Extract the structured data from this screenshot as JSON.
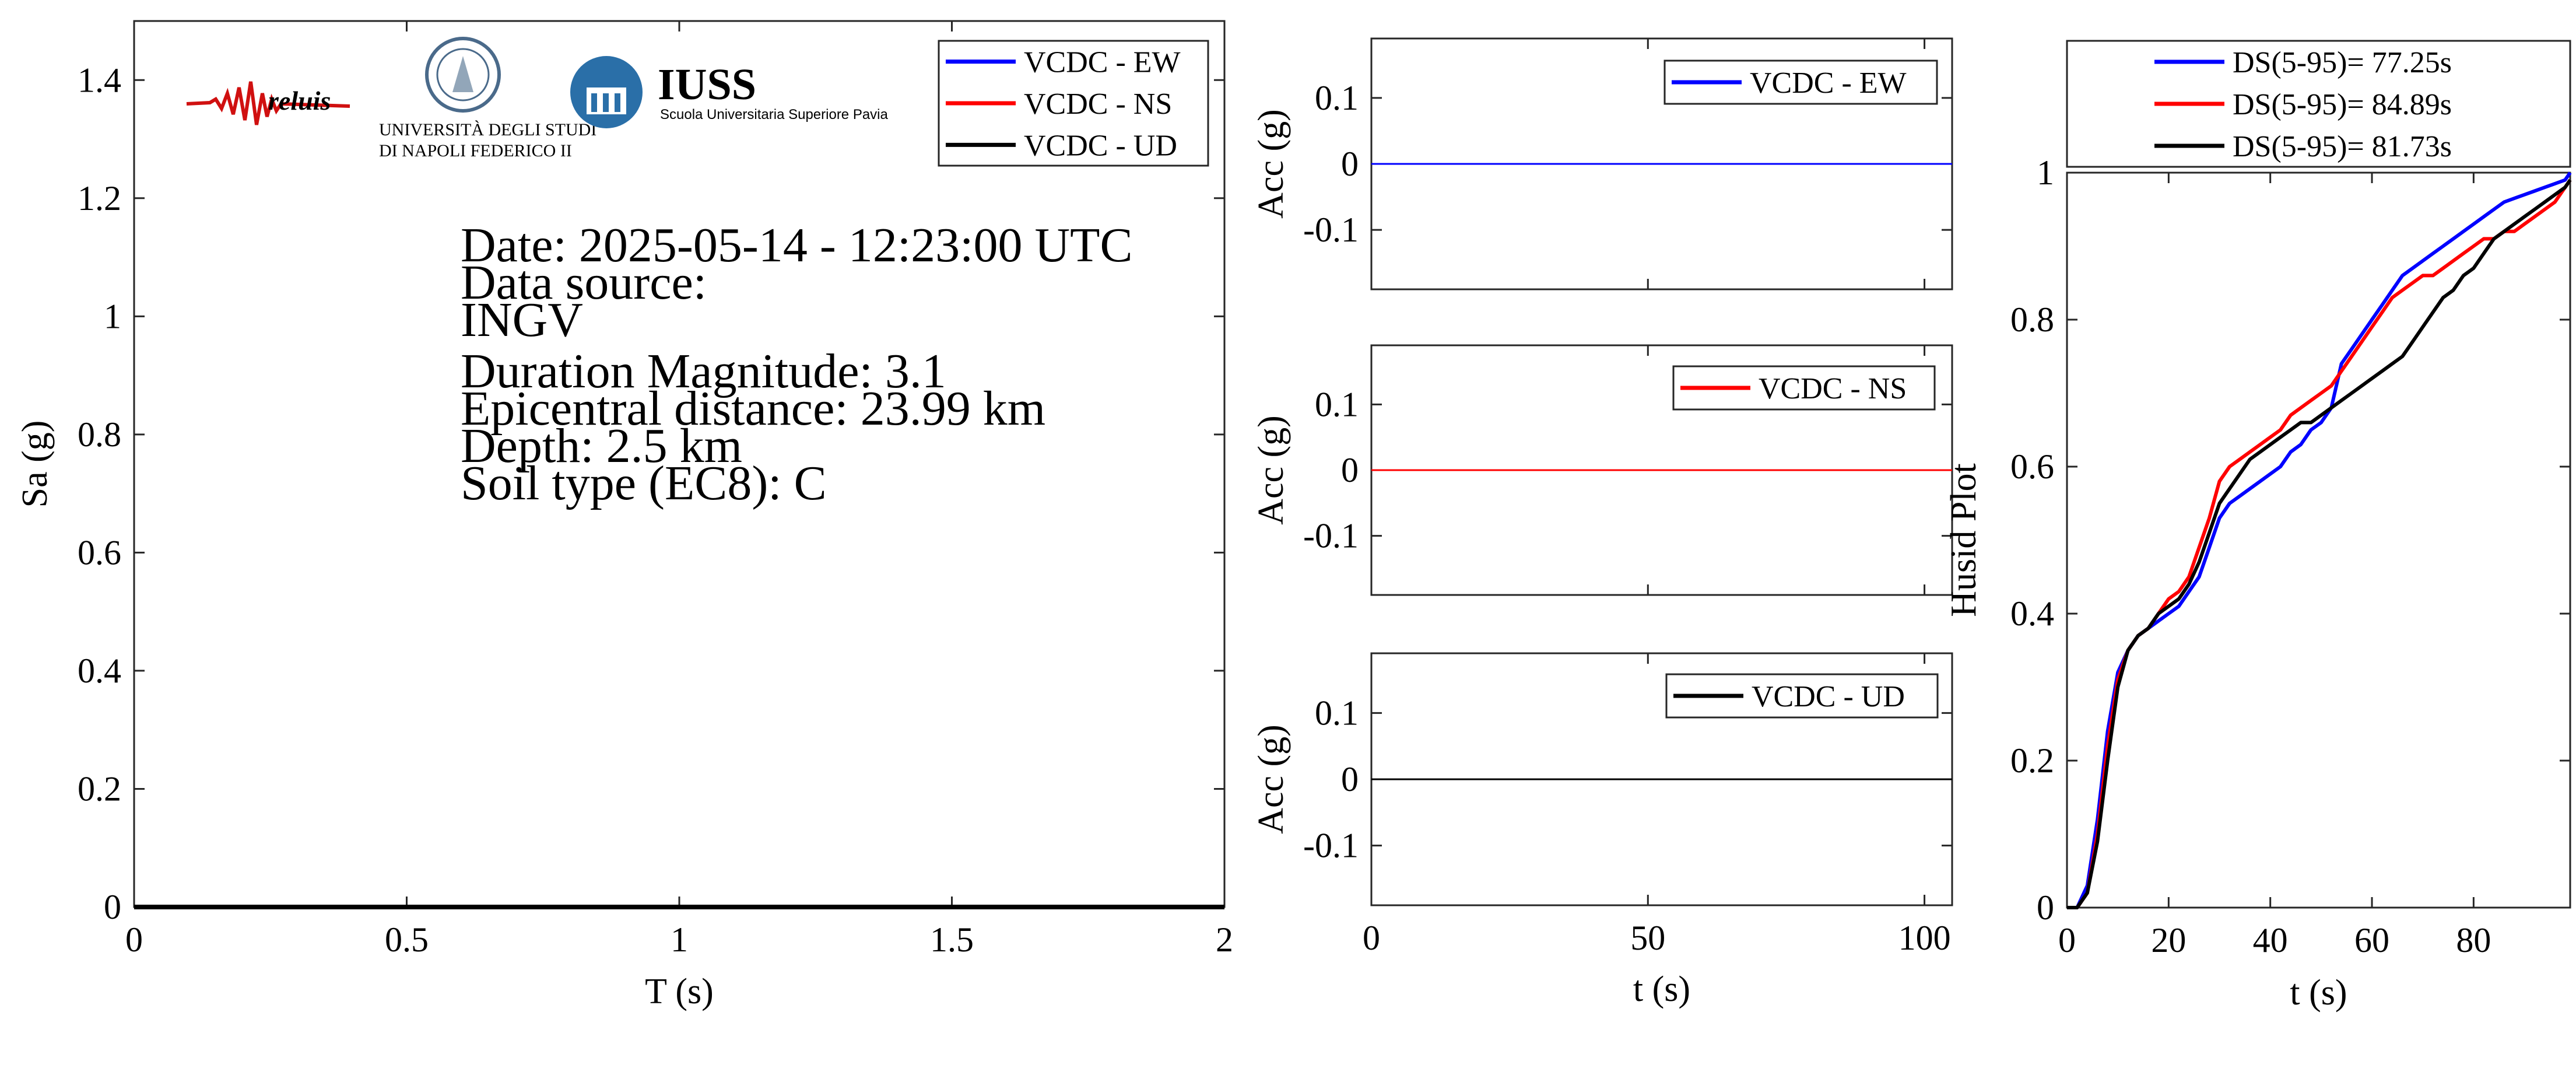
{
  "chart_data": [
    {
      "type": "line",
      "xlabel": "T (s)",
      "ylabel": "Sa (g)",
      "xlim": [
        0,
        2
      ],
      "ylim": [
        0,
        1.5
      ],
      "xticks": [
        "0",
        "0.5",
        "1",
        "1.5",
        "2"
      ],
      "yticks": [
        "0",
        "0.2",
        "0.4",
        "0.6",
        "0.8",
        "1",
        "1.2",
        "1.4"
      ],
      "legend_position": "top-right",
      "series": [
        {
          "name": "VCDC - EW",
          "color": "#0000ff",
          "x": [
            0,
            2
          ],
          "y": [
            0,
            0
          ]
        },
        {
          "name": "VCDC - NS",
          "color": "#ff0000",
          "x": [
            0,
            2
          ],
          "y": [
            0,
            0
          ]
        },
        {
          "name": "VCDC - UD",
          "color": "#000000",
          "x": [
            0,
            2
          ],
          "y": [
            0,
            0
          ]
        }
      ],
      "annotations": {
        "date": "Date: 2025-05-14 - 12:23:00 UTC",
        "source_label": "Data source:",
        "source": "INGV",
        "magnitude": "Duration Magnitude: 3.1",
        "distance": "Epicentral distance: 23.99 km",
        "depth": "Depth: 2.5 km",
        "soil": "Soil type (EC8): C"
      },
      "logos": {
        "reluis": "reluis",
        "unina_line1": "UNIVERSITÀ DEGLI STUDI",
        "unina_line2": "DI NAPOLI FEDERICO II",
        "iuss": "IUSS",
        "iuss_sub": "Scuola Universitaria Superiore Pavia"
      }
    },
    {
      "type": "line",
      "xlabel": "",
      "ylabel": "Acc (g)",
      "xlim": [
        0,
        105
      ],
      "ylim": [
        -0.19,
        0.19
      ],
      "yticks": [
        "0.1",
        "0",
        "-0.1"
      ],
      "legend_position": "top-right",
      "series": [
        {
          "name": "VCDC - EW",
          "color": "#0000ff",
          "x": [
            0,
            105
          ],
          "y": [
            0,
            0
          ]
        }
      ]
    },
    {
      "type": "line",
      "xlabel": "",
      "ylabel": "Acc (g)",
      "xlim": [
        0,
        105
      ],
      "ylim": [
        -0.19,
        0.19
      ],
      "yticks": [
        "0.1",
        "0",
        "-0.1"
      ],
      "legend_position": "top-right",
      "series": [
        {
          "name": "VCDC - NS",
          "color": "#ff0000",
          "x": [
            0,
            105
          ],
          "y": [
            0,
            0
          ]
        }
      ]
    },
    {
      "type": "line",
      "xlabel": "t (s)",
      "ylabel": "Acc (g)",
      "xlim": [
        0,
        105
      ],
      "ylim": [
        -0.19,
        0.19
      ],
      "xticks": [
        "0",
        "50",
        "100"
      ],
      "yticks": [
        "0.1",
        "0",
        "-0.1"
      ],
      "legend_position": "top-right",
      "series": [
        {
          "name": "VCDC - UD",
          "color": "#000000",
          "x": [
            0,
            105
          ],
          "y": [
            0,
            0
          ]
        }
      ]
    },
    {
      "type": "line",
      "xlabel": "t (s)",
      "ylabel": "Husid Plot",
      "xlim": [
        0,
        99
      ],
      "ylim": [
        0,
        1
      ],
      "xticks": [
        "0",
        "20",
        "40",
        "60",
        "80"
      ],
      "yticks": [
        "0",
        "0.2",
        "0.4",
        "0.6",
        "0.8",
        "1"
      ],
      "legend_position": "top (outside)",
      "series": [
        {
          "name": "DS(5-95)= 77.25s",
          "color": "#0000ff",
          "x": [
            0,
            2,
            4,
            6,
            8,
            10,
            12,
            14,
            16,
            18,
            20,
            22,
            24,
            26,
            28,
            30,
            32,
            34,
            36,
            38,
            40,
            42,
            44,
            46,
            48,
            50,
            52,
            54,
            56,
            58,
            60,
            62,
            64,
            66,
            68,
            70,
            72,
            74,
            76,
            78,
            80,
            82,
            84,
            86,
            88,
            90,
            92,
            94,
            96,
            98,
            99
          ],
          "y": [
            0,
            0,
            0.03,
            0.12,
            0.24,
            0.32,
            0.35,
            0.37,
            0.38,
            0.39,
            0.4,
            0.41,
            0.43,
            0.45,
            0.49,
            0.53,
            0.55,
            0.56,
            0.57,
            0.58,
            0.59,
            0.6,
            0.62,
            0.63,
            0.65,
            0.66,
            0.68,
            0.74,
            0.76,
            0.78,
            0.8,
            0.82,
            0.84,
            0.86,
            0.87,
            0.88,
            0.89,
            0.9,
            0.91,
            0.92,
            0.93,
            0.94,
            0.95,
            0.96,
            0.965,
            0.97,
            0.975,
            0.98,
            0.985,
            0.99,
            1.0
          ]
        },
        {
          "name": "DS(5-95)= 84.89s",
          "color": "#ff0000",
          "x": [
            0,
            2,
            4,
            6,
            8,
            10,
            12,
            14,
            16,
            18,
            20,
            22,
            24,
            26,
            28,
            30,
            32,
            34,
            36,
            38,
            40,
            42,
            44,
            46,
            48,
            50,
            52,
            54,
            56,
            58,
            60,
            62,
            64,
            66,
            68,
            70,
            72,
            74,
            76,
            78,
            80,
            82,
            84,
            86,
            88,
            90,
            92,
            94,
            96,
            98,
            99
          ],
          "y": [
            0,
            0,
            0.02,
            0.1,
            0.22,
            0.31,
            0.35,
            0.37,
            0.38,
            0.4,
            0.42,
            0.43,
            0.45,
            0.49,
            0.53,
            0.58,
            0.6,
            0.61,
            0.62,
            0.63,
            0.64,
            0.65,
            0.67,
            0.68,
            0.69,
            0.7,
            0.71,
            0.73,
            0.75,
            0.77,
            0.79,
            0.81,
            0.83,
            0.84,
            0.85,
            0.86,
            0.86,
            0.87,
            0.88,
            0.89,
            0.9,
            0.91,
            0.91,
            0.92,
            0.92,
            0.93,
            0.94,
            0.95,
            0.96,
            0.98,
            0.99
          ]
        },
        {
          "name": "DS(5-95)= 81.73s",
          "color": "#000000",
          "x": [
            0,
            2,
            4,
            6,
            8,
            10,
            12,
            14,
            16,
            18,
            20,
            22,
            24,
            26,
            28,
            30,
            32,
            34,
            36,
            38,
            40,
            42,
            44,
            46,
            48,
            50,
            52,
            54,
            56,
            58,
            60,
            62,
            64,
            66,
            68,
            70,
            72,
            74,
            76,
            78,
            80,
            82,
            84,
            86,
            88,
            90,
            92,
            94,
            96,
            98,
            99
          ],
          "y": [
            0,
            0,
            0.02,
            0.09,
            0.2,
            0.3,
            0.35,
            0.37,
            0.38,
            0.4,
            0.41,
            0.42,
            0.44,
            0.47,
            0.51,
            0.55,
            0.57,
            0.59,
            0.61,
            0.62,
            0.63,
            0.64,
            0.65,
            0.66,
            0.66,
            0.67,
            0.68,
            0.69,
            0.7,
            0.71,
            0.72,
            0.73,
            0.74,
            0.75,
            0.77,
            0.79,
            0.81,
            0.83,
            0.84,
            0.86,
            0.87,
            0.89,
            0.91,
            0.92,
            0.93,
            0.94,
            0.95,
            0.96,
            0.97,
            0.98,
            0.99
          ]
        }
      ]
    }
  ]
}
